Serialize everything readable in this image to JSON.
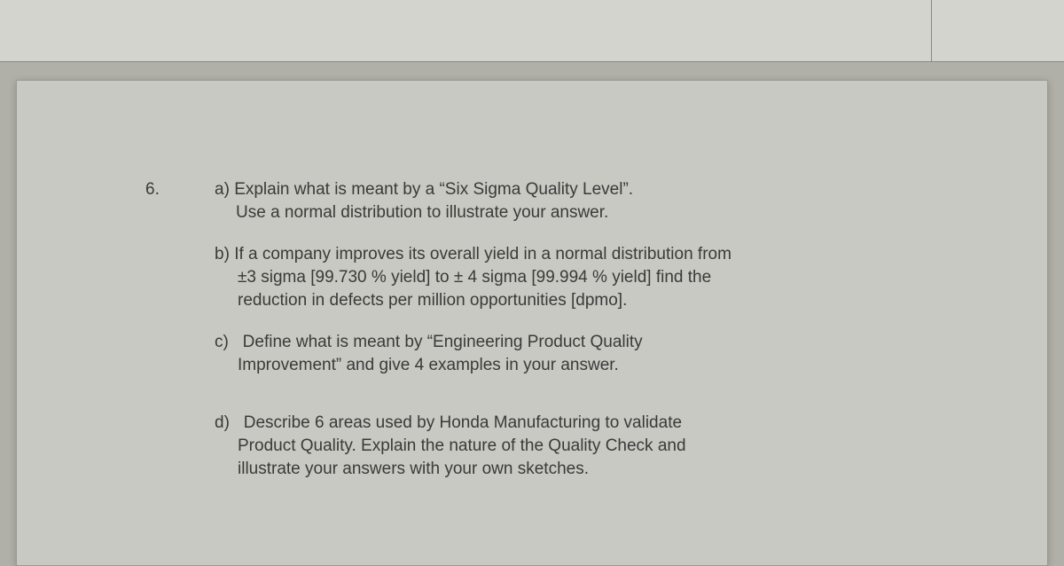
{
  "colors": {
    "outer_bg": "#a8a8a0",
    "topbar_bg": "#d4d4ce",
    "panel_bg": "#c8c9c3",
    "text": "#3a3a38",
    "border": "#9a9a94"
  },
  "typography": {
    "font_family": "Arial",
    "font_size_pt": 14,
    "line_height": 1.35
  },
  "question": {
    "number": "6.",
    "parts": {
      "a": {
        "label": "a)",
        "line1": "Explain what is meant by a “Six Sigma Quality Level”.",
        "line2": "Use a normal distribution to illustrate your answer."
      },
      "b": {
        "label": "b)",
        "line1": "If a company improves its overall yield in a normal distribution from",
        "line2": "±3 sigma [99.730 % yield] to ± 4 sigma [99.994 % yield] find the",
        "line3": "reduction in defects per million opportunities [dpmo]."
      },
      "c": {
        "label": "c)",
        "line1": "Define what is meant by “Engineering Product Quality",
        "line2": "Improvement” and give 4 examples in your answer."
      },
      "d": {
        "label": "d)",
        "line1": "Describe 6 areas used by Honda Manufacturing to validate",
        "line2": "Product Quality. Explain the nature of the Quality Check and",
        "line3": "illustrate your answers with your own sketches."
      }
    }
  }
}
